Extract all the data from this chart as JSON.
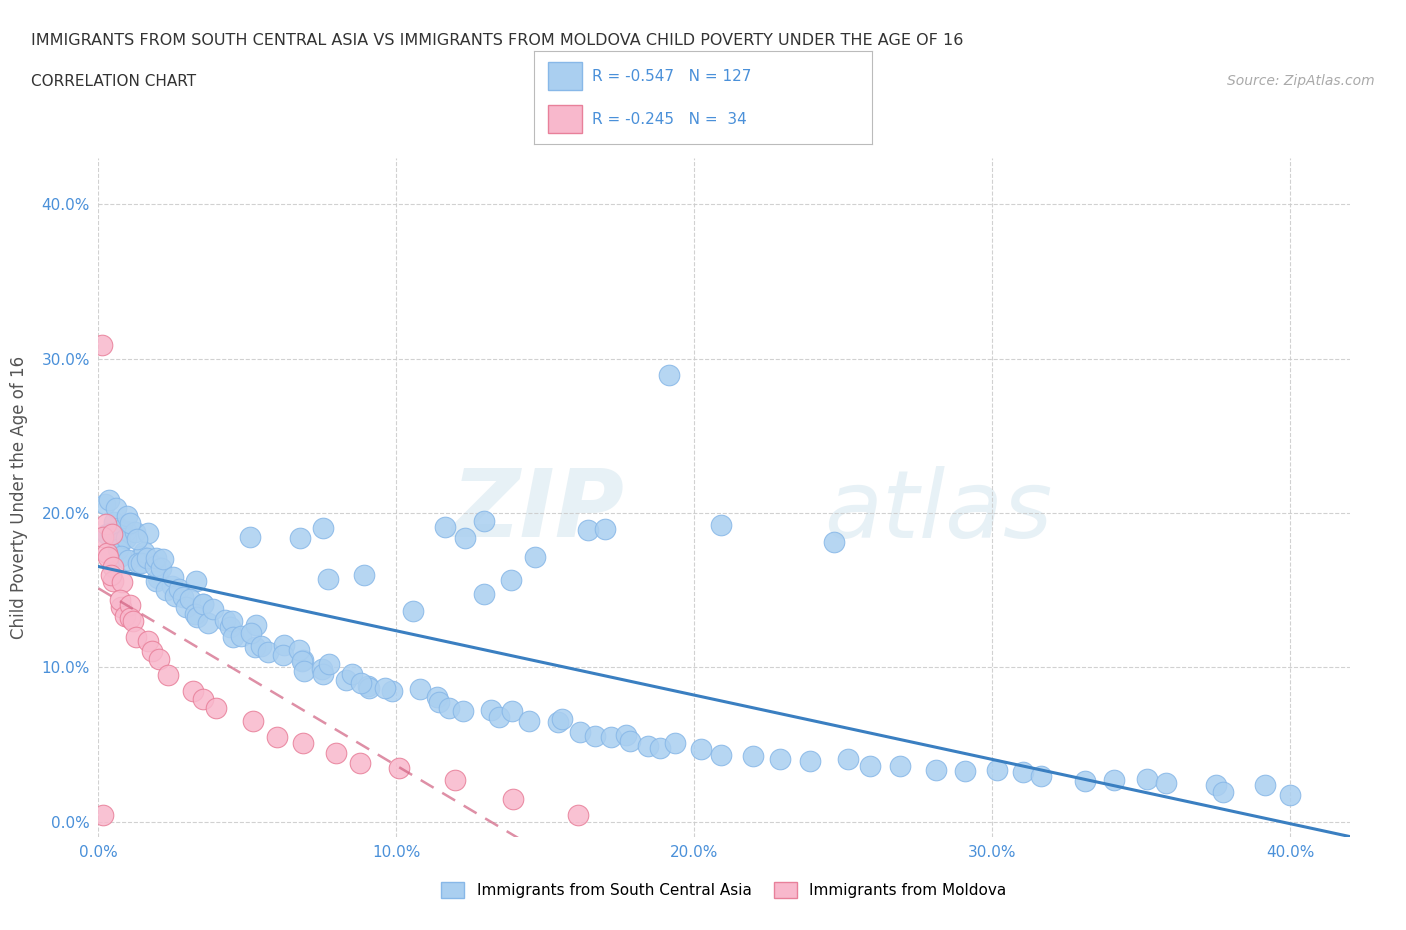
{
  "title": "IMMIGRANTS FROM SOUTH CENTRAL ASIA VS IMMIGRANTS FROM MOLDOVA CHILD POVERTY UNDER THE AGE OF 16",
  "subtitle": "CORRELATION CHART",
  "source": "Source: ZipAtlas.com",
  "ylabel": "Child Poverty Under the Age of 16",
  "xlim": [
    0.0,
    0.42
  ],
  "ylim": [
    -0.01,
    0.43
  ],
  "xticks": [
    0.0,
    0.1,
    0.2,
    0.3,
    0.4
  ],
  "yticks": [
    0.0,
    0.1,
    0.2,
    0.3,
    0.4
  ],
  "xticklabels": [
    "0.0%",
    "10.0%",
    "20.0%",
    "30.0%",
    "40.0%"
  ],
  "yticklabels": [
    "0.0%",
    "10.0%",
    "20.0%",
    "30.0%",
    "40.0%"
  ],
  "grid_color": "#cccccc",
  "background_color": "#ffffff",
  "blue_color": "#aacff0",
  "blue_edge": "#88b8e8",
  "blue_line": "#3a7fc1",
  "pink_color": "#f8b8cc",
  "pink_edge": "#e8809a",
  "pink_line": "#d06080",
  "pink_line_dash": [
    6,
    4
  ],
  "blue_R": -0.547,
  "blue_N": 127,
  "pink_R": -0.245,
  "pink_N": 34,
  "blue_x": [
    0.002,
    0.003,
    0.003,
    0.004,
    0.005,
    0.006,
    0.006,
    0.007,
    0.007,
    0.008,
    0.009,
    0.01,
    0.01,
    0.011,
    0.011,
    0.012,
    0.012,
    0.013,
    0.013,
    0.014,
    0.015,
    0.015,
    0.016,
    0.017,
    0.018,
    0.018,
    0.019,
    0.02,
    0.021,
    0.022,
    0.023,
    0.024,
    0.025,
    0.026,
    0.027,
    0.028,
    0.029,
    0.03,
    0.031,
    0.032,
    0.033,
    0.034,
    0.035,
    0.036,
    0.038,
    0.04,
    0.042,
    0.044,
    0.046,
    0.048,
    0.05,
    0.052,
    0.054,
    0.056,
    0.058,
    0.06,
    0.062,
    0.064,
    0.066,
    0.068,
    0.07,
    0.073,
    0.076,
    0.079,
    0.082,
    0.085,
    0.088,
    0.091,
    0.094,
    0.097,
    0.1,
    0.105,
    0.11,
    0.115,
    0.12,
    0.125,
    0.13,
    0.135,
    0.14,
    0.145,
    0.15,
    0.155,
    0.16,
    0.165,
    0.17,
    0.175,
    0.18,
    0.185,
    0.19,
    0.195,
    0.2,
    0.21,
    0.22,
    0.23,
    0.24,
    0.25,
    0.26,
    0.27,
    0.28,
    0.29,
    0.3,
    0.31,
    0.32,
    0.33,
    0.34,
    0.35,
    0.36,
    0.37,
    0.38,
    0.39,
    0.4,
    0.21,
    0.19,
    0.13,
    0.08,
    0.07,
    0.05,
    0.16,
    0.25,
    0.17,
    0.12,
    0.115,
    0.09,
    0.08,
    0.15,
    0.14,
    0.13,
    0.11
  ],
  "blue_y": [
    0.19,
    0.205,
    0.19,
    0.21,
    0.195,
    0.19,
    0.185,
    0.2,
    0.185,
    0.18,
    0.175,
    0.195,
    0.18,
    0.185,
    0.17,
    0.195,
    0.175,
    0.185,
    0.17,
    0.175,
    0.185,
    0.17,
    0.165,
    0.17,
    0.16,
    0.155,
    0.165,
    0.17,
    0.16,
    0.17,
    0.155,
    0.15,
    0.16,
    0.145,
    0.15,
    0.145,
    0.14,
    0.155,
    0.145,
    0.14,
    0.135,
    0.135,
    0.14,
    0.13,
    0.135,
    0.13,
    0.125,
    0.13,
    0.12,
    0.125,
    0.125,
    0.115,
    0.12,
    0.115,
    0.11,
    0.115,
    0.11,
    0.105,
    0.11,
    0.105,
    0.1,
    0.1,
    0.095,
    0.1,
    0.09,
    0.095,
    0.09,
    0.085,
    0.09,
    0.085,
    0.085,
    0.085,
    0.08,
    0.08,
    0.075,
    0.075,
    0.072,
    0.068,
    0.07,
    0.065,
    0.065,
    0.062,
    0.06,
    0.058,
    0.056,
    0.055,
    0.053,
    0.05,
    0.05,
    0.048,
    0.048,
    0.045,
    0.043,
    0.042,
    0.04,
    0.038,
    0.037,
    0.036,
    0.034,
    0.033,
    0.032,
    0.031,
    0.03,
    0.028,
    0.027,
    0.026,
    0.025,
    0.024,
    0.023,
    0.022,
    0.02,
    0.195,
    0.29,
    0.195,
    0.19,
    0.185,
    0.185,
    0.19,
    0.185,
    0.19,
    0.185,
    0.19,
    0.16,
    0.155,
    0.17,
    0.155,
    0.145,
    0.135
  ],
  "pink_x": [
    0.001,
    0.002,
    0.003,
    0.004,
    0.004,
    0.005,
    0.005,
    0.006,
    0.007,
    0.007,
    0.008,
    0.009,
    0.01,
    0.011,
    0.012,
    0.014,
    0.016,
    0.018,
    0.02,
    0.025,
    0.03,
    0.035,
    0.04,
    0.05,
    0.06,
    0.07,
    0.08,
    0.09,
    0.1,
    0.12,
    0.14,
    0.16,
    0.003,
    0.001
  ],
  "pink_y": [
    0.195,
    0.185,
    0.175,
    0.185,
    0.17,
    0.165,
    0.155,
    0.16,
    0.155,
    0.14,
    0.145,
    0.135,
    0.14,
    0.13,
    0.13,
    0.12,
    0.115,
    0.11,
    0.105,
    0.095,
    0.085,
    0.08,
    0.075,
    0.065,
    0.055,
    0.05,
    0.045,
    0.04,
    0.035,
    0.025,
    0.015,
    0.005,
    0.31,
    0.005
  ]
}
